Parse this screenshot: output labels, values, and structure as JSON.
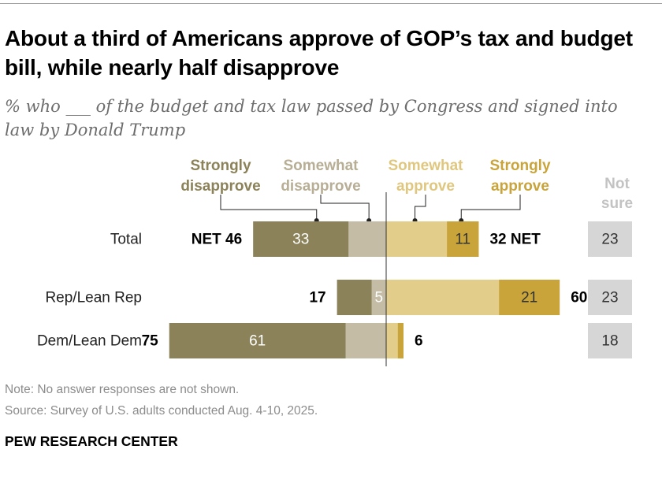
{
  "header": {
    "title": "About a third of Americans approve of GOP’s tax and budget bill, while nearly half disapprove",
    "subtitle": "% who ___ of the budget and tax law passed by Congress and signed into law by Donald Trump"
  },
  "footer": {
    "note": "Note: No answer responses are not shown.",
    "source": "Source: Survey of U.S. adults conducted Aug. 4-10, 2025.",
    "brand": "PEW RESEARCH CENTER"
  },
  "chart_data": {
    "type": "diverging-bar",
    "title": "About a third of Americans approve of GOP’s tax and budget bill, while nearly half disapprove",
    "categories": [
      "Total",
      "Rep/Lean Rep",
      "Dem/Lean Dem"
    ],
    "series": [
      {
        "name": "Strongly disapprove",
        "label_lines": [
          "Strongly",
          "disapprove"
        ],
        "side": "left",
        "color": "#8b8259",
        "label_color": "#8b8259",
        "values": [
          33,
          12,
          61
        ],
        "value_labels": [
          "33",
          "",
          "61"
        ]
      },
      {
        "name": "Somewhat disapprove",
        "label_lines": [
          "Somewhat",
          "disapprove"
        ],
        "side": "left",
        "color": "#c4bca4",
        "label_color": "#b7ae95",
        "values": [
          13,
          5,
          14
        ],
        "value_labels": [
          "",
          "5",
          ""
        ]
      },
      {
        "name": "Somewhat approve",
        "label_lines": [
          "Somewhat",
          "approve"
        ],
        "side": "right",
        "color": "#e3cd8a",
        "label_color": "#e0c77f",
        "values": [
          21,
          39,
          4
        ],
        "value_labels": [
          "",
          "",
          ""
        ]
      },
      {
        "name": "Strongly approve",
        "label_lines": [
          "Strongly",
          "approve"
        ],
        "side": "right",
        "color": "#c9a43b",
        "label_color": "#c9a43b",
        "values": [
          11,
          21,
          2
        ],
        "value_labels": [
          "11",
          "21",
          ""
        ]
      }
    ],
    "net_disapprove": [
      46,
      17,
      75
    ],
    "net_approve": [
      32,
      60,
      6
    ],
    "net_disapprove_labels": [
      "NET  46",
      "17",
      "75"
    ],
    "net_approve_labels": [
      "32  NET",
      "60",
      "6"
    ],
    "not_sure": {
      "label_lines": [
        "Not",
        "sure"
      ],
      "values": [
        23,
        23,
        18
      ],
      "color": "#d6d6d6",
      "label_color": "#c3c3c3"
    }
  }
}
